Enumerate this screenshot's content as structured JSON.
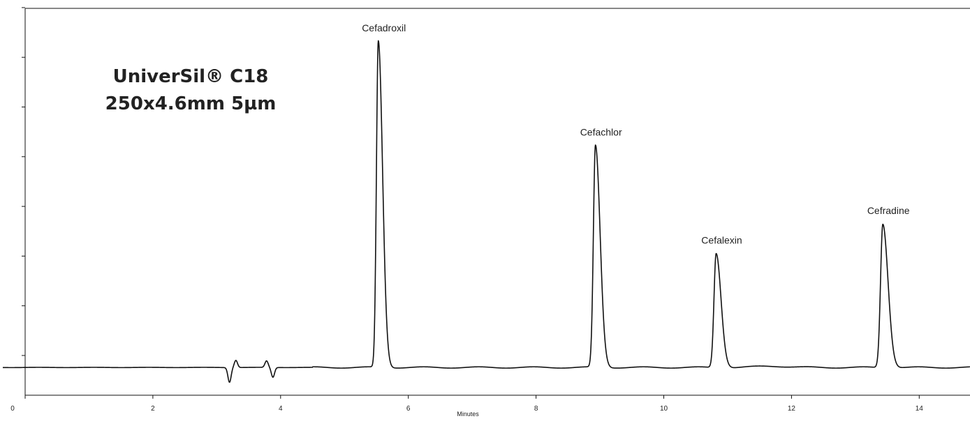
{
  "chart_data": {
    "type": "line",
    "title": [
      "UniverSil® C18",
      "250x4.6mm 5µm"
    ],
    "xlabel": "Minutes",
    "ylabel": "",
    "xlim": [
      0,
      14.8
    ],
    "ylim": [
      -0.085,
      1.1
    ],
    "x_ticks": [
      0,
      2,
      4,
      6,
      8,
      10,
      12,
      14
    ],
    "y_tick_count": 8,
    "grid": false,
    "legend": "none",
    "line_color": "#111111",
    "peaks": [
      {
        "name": "Cefadroxil",
        "rt": 5.53,
        "height": 1.0
      },
      {
        "name": "Cefachlor",
        "rt": 8.93,
        "height": 0.68
      },
      {
        "name": "Cefalexin",
        "rt": 10.82,
        "height": 0.35
      },
      {
        "name": "Cefradine",
        "rt": 13.43,
        "height": 0.44
      }
    ],
    "baseline_features": [
      {
        "rt": 3.2,
        "height": -0.045
      },
      {
        "rt": 3.3,
        "height": 0.022
      },
      {
        "rt": 3.78,
        "height": 0.02
      },
      {
        "rt": 3.88,
        "height": -0.03
      }
    ]
  }
}
